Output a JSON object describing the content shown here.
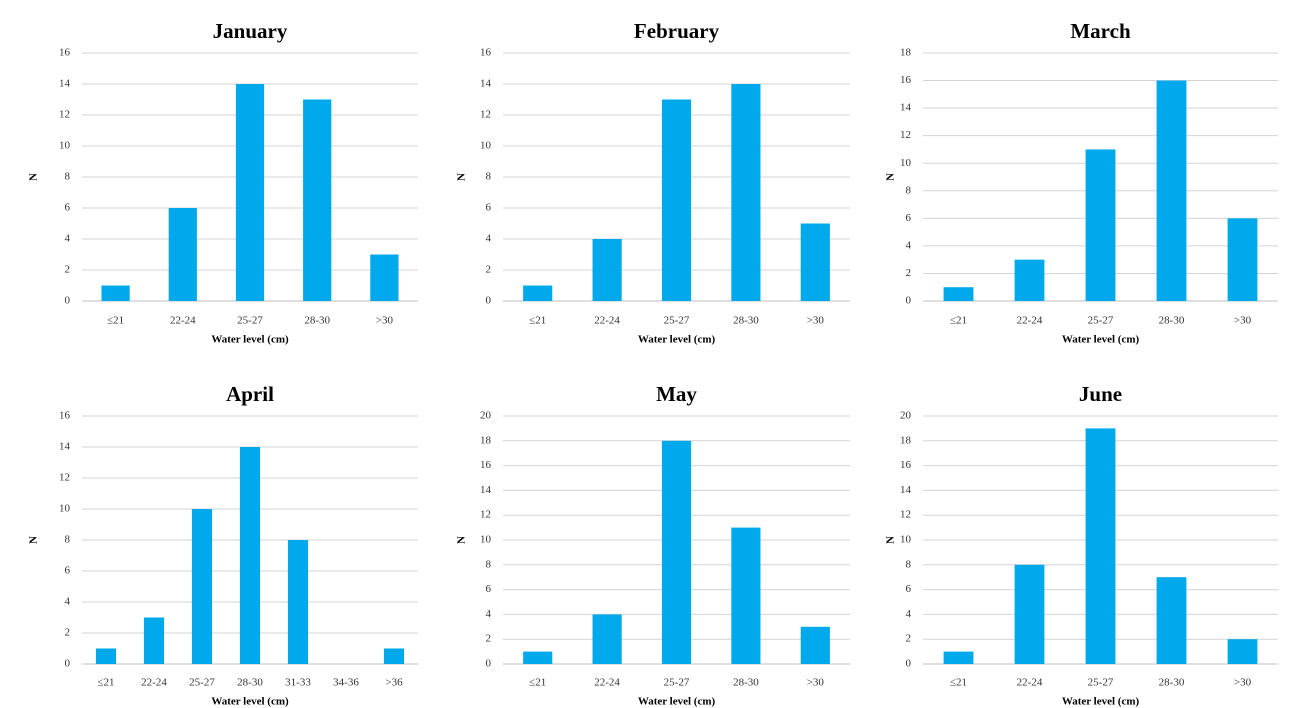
{
  "figure": {
    "bar_color": "#00a8ec"
  },
  "chart_data": [
    {
      "type": "bar",
      "title": "January",
      "xlabel": "Water level (cm)",
      "ylabel": "N",
      "categories": [
        "≤21",
        "22-24",
        "25-27",
        "28-30",
        ">30"
      ],
      "values": [
        1,
        6,
        14,
        13,
        3
      ],
      "ylim": [
        0,
        16
      ],
      "yticks": [
        0,
        2,
        4,
        6,
        8,
        10,
        12,
        14,
        16
      ],
      "grid": true
    },
    {
      "type": "bar",
      "title": "February",
      "xlabel": "Water level (cm)",
      "ylabel": "N",
      "categories": [
        "≤21",
        "22-24",
        "25-27",
        "28-30",
        ">30"
      ],
      "values": [
        1,
        4,
        13,
        14,
        5
      ],
      "ylim": [
        0,
        16
      ],
      "yticks": [
        0,
        2,
        4,
        6,
        8,
        10,
        12,
        14,
        16
      ],
      "grid": true
    },
    {
      "type": "bar",
      "title": "March",
      "xlabel": "Water level (cm)",
      "ylabel": "N",
      "categories": [
        "≤21",
        "22-24",
        "25-27",
        "28-30",
        ">30"
      ],
      "values": [
        1,
        3,
        11,
        16,
        6
      ],
      "ylim": [
        0,
        18
      ],
      "yticks": [
        0,
        2,
        4,
        6,
        8,
        10,
        12,
        14,
        16,
        18
      ],
      "grid": true
    },
    {
      "type": "bar",
      "title": "April",
      "xlabel": "Water level (cm)",
      "ylabel": "N",
      "categories": [
        "≤21",
        "22-24",
        "25-27",
        "28-30",
        "31-33",
        "34-36",
        ">36"
      ],
      "values": [
        1,
        3,
        10,
        14,
        8,
        0,
        1
      ],
      "ylim": [
        0,
        16
      ],
      "yticks": [
        0,
        2,
        4,
        6,
        8,
        10,
        12,
        14,
        16
      ],
      "grid": true
    },
    {
      "type": "bar",
      "title": "May",
      "xlabel": "Water level (cm)",
      "ylabel": "N",
      "categories": [
        "≤21",
        "22-24",
        "25-27",
        "28-30",
        ">30"
      ],
      "values": [
        1,
        4,
        18,
        11,
        3
      ],
      "ylim": [
        0,
        20
      ],
      "yticks": [
        0,
        2,
        4,
        6,
        8,
        10,
        12,
        14,
        16,
        18,
        20
      ],
      "grid": true
    },
    {
      "type": "bar",
      "title": "June",
      "xlabel": "Water level (cm)",
      "ylabel": "N",
      "categories": [
        "≤21",
        "22-24",
        "25-27",
        "28-30",
        ">30"
      ],
      "values": [
        1,
        8,
        19,
        7,
        2
      ],
      "ylim": [
        0,
        20
      ],
      "yticks": [
        0,
        2,
        4,
        6,
        8,
        10,
        12,
        14,
        16,
        18,
        20
      ],
      "grid": true
    }
  ]
}
